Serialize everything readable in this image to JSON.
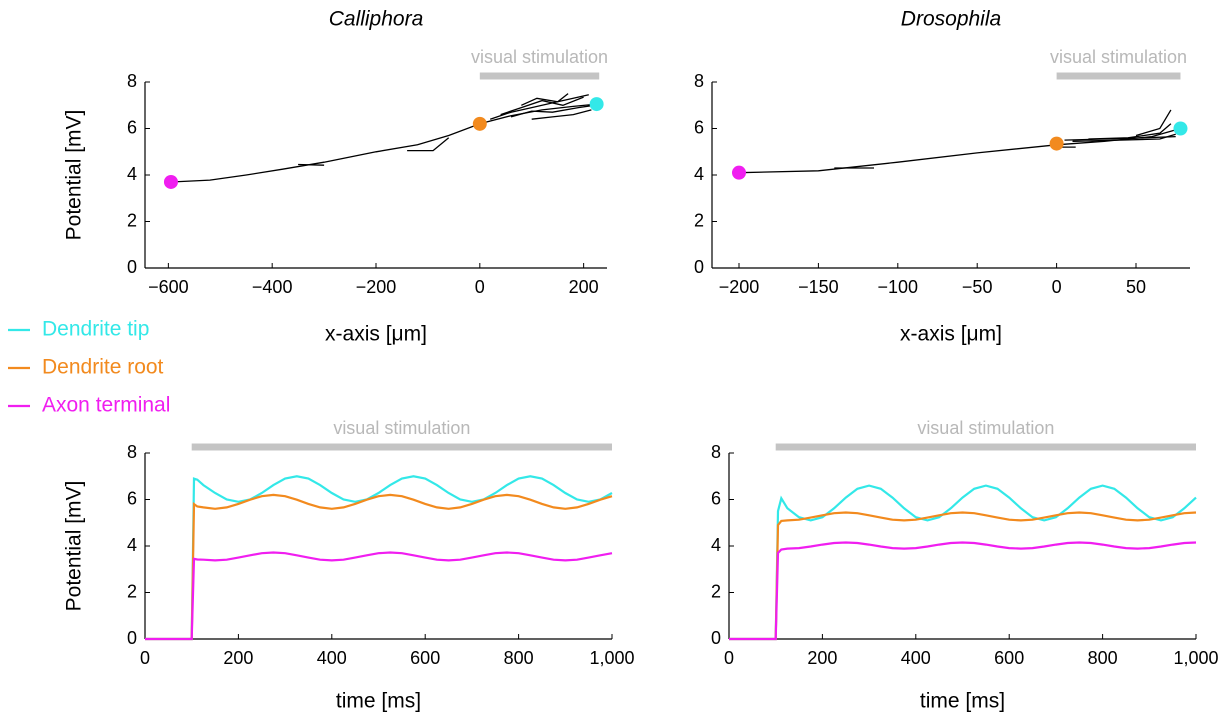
{
  "chart_data": [
    {
      "type": "morphology",
      "title": "Calliphora",
      "xlabel": "x-axis [μm]",
      "ylabel": "Potential [mV]",
      "xlim": [
        -645,
        245
      ],
      "ylim": [
        0,
        8
      ],
      "xticks": [
        {
          "value": -600,
          "label": "−600"
        },
        {
          "value": -400,
          "label": "−400"
        },
        {
          "value": -200,
          "label": "−200"
        },
        0,
        200
      ],
      "yticks": [
        0,
        2,
        4,
        6,
        8
      ],
      "stimulus": {
        "label": "visual stimulation",
        "start": 0,
        "end": 230
      },
      "series": [
        {
          "color": "#000000",
          "x": [
            -595,
            -520,
            -450,
            -380,
            -300,
            -200,
            -120,
            -60,
            0,
            60,
            120,
            180,
            225
          ],
          "values": [
            3.7,
            3.78,
            4.0,
            4.25,
            4.55,
            5.0,
            5.3,
            5.7,
            6.2,
            6.55,
            6.8,
            6.95,
            7.05
          ]
        },
        {
          "color": "#000000",
          "x": [
            -350,
            -300
          ],
          "values": [
            4.45,
            4.42
          ]
        },
        {
          "color": "#000000",
          "x": [
            -140,
            -90,
            -60
          ],
          "values": [
            5.05,
            5.05,
            5.6
          ]
        },
        {
          "color": "#000000",
          "x": [
            20,
            60,
            100,
            140,
            180,
            210
          ],
          "values": [
            6.4,
            6.7,
            6.9,
            7.1,
            7.3,
            7.45
          ]
        },
        {
          "color": "#000000",
          "x": [
            40,
            80,
            120,
            160,
            200
          ],
          "values": [
            6.6,
            6.9,
            7.2,
            7.0,
            7.35
          ]
        },
        {
          "color": "#000000",
          "x": [
            60,
            100,
            140,
            190,
            220
          ],
          "values": [
            6.5,
            6.75,
            6.7,
            6.9,
            7.0
          ]
        },
        {
          "color": "#000000",
          "x": [
            80,
            110,
            150,
            170
          ],
          "values": [
            7.0,
            7.3,
            7.15,
            7.5
          ]
        },
        {
          "color": "#000000",
          "x": [
            100,
            140,
            180,
            215
          ],
          "values": [
            6.4,
            6.5,
            6.6,
            6.8
          ]
        }
      ],
      "points": {
        "x": [
          -595,
          0,
          225
        ],
        "values": [
          3.7,
          6.2,
          7.05
        ],
        "colors": [
          "#f01ef0",
          "#f28a1e",
          "#33e8e8"
        ]
      }
    },
    {
      "type": "morphology",
      "title": "Drosophila",
      "xlabel": "x-axis [μm]",
      "xlim": [
        -217,
        84
      ],
      "ylim": [
        0,
        8
      ],
      "xticks": [
        {
          "value": -200,
          "label": "−200"
        },
        {
          "value": -150,
          "label": "−150"
        },
        {
          "value": -100,
          "label": "−100"
        },
        {
          "value": -50,
          "label": "−50"
        },
        0,
        50
      ],
      "yticks": [
        0,
        2,
        4,
        6,
        8
      ],
      "stimulus": {
        "label": "visual stimulation",
        "start": 0,
        "end": 78
      },
      "series": [
        {
          "color": "#000000",
          "x": [
            -200,
            -150,
            -100,
            -50,
            0,
            30,
            60,
            78
          ],
          "values": [
            4.1,
            4.18,
            4.55,
            4.95,
            5.3,
            5.45,
            5.65,
            6.0
          ]
        },
        {
          "color": "#000000",
          "x": [
            -140,
            -115
          ],
          "values": [
            4.3,
            4.3
          ]
        },
        {
          "color": "#000000",
          "x": [
            5,
            30,
            55,
            75
          ],
          "values": [
            5.5,
            5.55,
            5.6,
            5.65
          ]
        },
        {
          "color": "#000000",
          "x": [
            10,
            40,
            65,
            75
          ],
          "values": [
            5.45,
            5.5,
            5.55,
            5.75
          ]
        },
        {
          "color": "#000000",
          "x": [
            20,
            45,
            65,
            72
          ],
          "values": [
            5.55,
            5.6,
            5.8,
            6.2
          ]
        },
        {
          "color": "#000000",
          "x": [
            50,
            65,
            72
          ],
          "values": [
            5.7,
            6.0,
            6.8
          ]
        },
        {
          "color": "#000000",
          "x": [
            0,
            12
          ],
          "values": [
            5.2,
            5.2
          ]
        }
      ],
      "points": {
        "x": [
          -200,
          0,
          78
        ],
        "values": [
          4.1,
          5.35,
          6.0
        ],
        "colors": [
          "#f01ef0",
          "#f28a1e",
          "#33e8e8"
        ]
      }
    },
    {
      "type": "line",
      "xlabel": "time [ms]",
      "ylabel": "Potential [mV]",
      "xlim": [
        0,
        1000
      ],
      "ylim": [
        0,
        8
      ],
      "xticks": [
        0,
        200,
        400,
        600,
        800,
        {
          "value": 1000,
          "label": "1,000"
        }
      ],
      "yticks": [
        0,
        2,
        4,
        6,
        8
      ],
      "stimulus": {
        "label": "visual stimulation",
        "start": 100,
        "end": 1000
      },
      "x": [
        0,
        100,
        105,
        112,
        125,
        150,
        175,
        200,
        225,
        250,
        275,
        300,
        325,
        350,
        375,
        400,
        425,
        450,
        475,
        500,
        525,
        550,
        575,
        600,
        625,
        650,
        675,
        700,
        725,
        750,
        775,
        800,
        825,
        850,
        875,
        900,
        925,
        950,
        975,
        1000
      ],
      "series": [
        {
          "name": "Dendrite tip",
          "color": "#33e8e8",
          "values": [
            0,
            0,
            6.9,
            6.85,
            6.62,
            6.28,
            6.0,
            5.9,
            6.0,
            6.28,
            6.62,
            6.9,
            7.0,
            6.9,
            6.62,
            6.28,
            6.0,
            5.9,
            6.0,
            6.28,
            6.62,
            6.9,
            7.0,
            6.9,
            6.62,
            6.28,
            6.0,
            5.9,
            6.0,
            6.28,
            6.62,
            6.9,
            7.0,
            6.9,
            6.62,
            6.28,
            6.0,
            5.9,
            6.0,
            6.28
          ]
        },
        {
          "name": "Dendrite root",
          "color": "#f28a1e",
          "values": [
            0,
            0,
            5.8,
            5.7,
            5.66,
            5.6,
            5.66,
            5.81,
            5.99,
            6.14,
            6.2,
            6.14,
            5.99,
            5.81,
            5.66,
            5.6,
            5.66,
            5.81,
            5.99,
            6.14,
            6.2,
            6.14,
            5.99,
            5.81,
            5.66,
            5.6,
            5.66,
            5.81,
            5.99,
            6.14,
            6.2,
            6.14,
            5.99,
            5.81,
            5.66,
            5.6,
            5.66,
            5.81,
            5.99,
            6.14
          ]
        },
        {
          "name": "Axon terminal",
          "color": "#f01ef0",
          "values": [
            0,
            0,
            3.45,
            3.42,
            3.41,
            3.38,
            3.41,
            3.5,
            3.6,
            3.69,
            3.72,
            3.69,
            3.6,
            3.5,
            3.41,
            3.38,
            3.41,
            3.5,
            3.6,
            3.69,
            3.72,
            3.69,
            3.6,
            3.5,
            3.41,
            3.38,
            3.41,
            3.5,
            3.6,
            3.69,
            3.72,
            3.69,
            3.6,
            3.5,
            3.41,
            3.38,
            3.41,
            3.5,
            3.6,
            3.69
          ]
        }
      ]
    },
    {
      "type": "line",
      "xlabel": "time [ms]",
      "xlim": [
        0,
        1000
      ],
      "ylim": [
        0,
        8
      ],
      "xticks": [
        0,
        200,
        400,
        600,
        800,
        {
          "value": 1000,
          "label": "1,000"
        }
      ],
      "yticks": [
        0,
        2,
        4,
        6,
        8
      ],
      "stimulus": {
        "label": "visual stimulation",
        "start": 100,
        "end": 1000
      },
      "x": [
        0,
        100,
        105,
        112,
        125,
        150,
        175,
        200,
        225,
        250,
        275,
        300,
        325,
        350,
        375,
        400,
        425,
        450,
        475,
        500,
        525,
        550,
        575,
        600,
        625,
        650,
        675,
        700,
        725,
        750,
        775,
        800,
        825,
        850,
        875,
        900,
        925,
        950,
        975,
        1000
      ],
      "series": [
        {
          "color": "#33e8e8",
          "values": [
            0,
            0,
            5.5,
            6.05,
            5.62,
            5.24,
            5.1,
            5.24,
            5.62,
            6.08,
            6.46,
            6.6,
            6.46,
            6.08,
            5.62,
            5.24,
            5.1,
            5.24,
            5.62,
            6.08,
            6.46,
            6.6,
            6.46,
            6.08,
            5.62,
            5.24,
            5.1,
            5.24,
            5.62,
            6.08,
            6.46,
            6.6,
            6.46,
            6.08,
            5.62,
            5.24,
            5.1,
            5.24,
            5.62,
            6.08
          ]
        },
        {
          "color": "#f28a1e",
          "values": [
            0,
            0,
            4.9,
            5.08,
            5.1,
            5.13,
            5.22,
            5.32,
            5.41,
            5.44,
            5.41,
            5.32,
            5.22,
            5.13,
            5.1,
            5.13,
            5.22,
            5.32,
            5.41,
            5.44,
            5.41,
            5.32,
            5.22,
            5.13,
            5.1,
            5.13,
            5.22,
            5.32,
            5.41,
            5.44,
            5.41,
            5.32,
            5.22,
            5.13,
            5.1,
            5.13,
            5.22,
            5.32,
            5.41,
            5.44
          ]
        },
        {
          "color": "#f01ef0",
          "values": [
            0,
            0,
            3.7,
            3.85,
            3.89,
            3.91,
            3.98,
            4.06,
            4.13,
            4.15,
            4.13,
            4.06,
            3.98,
            3.91,
            3.89,
            3.91,
            3.98,
            4.06,
            4.13,
            4.15,
            4.13,
            4.06,
            3.98,
            3.91,
            3.89,
            3.91,
            3.98,
            4.06,
            4.13,
            4.15,
            4.13,
            4.06,
            3.98,
            3.91,
            3.89,
            3.91,
            3.98,
            4.06,
            4.13,
            4.15
          ]
        }
      ]
    }
  ]
}
